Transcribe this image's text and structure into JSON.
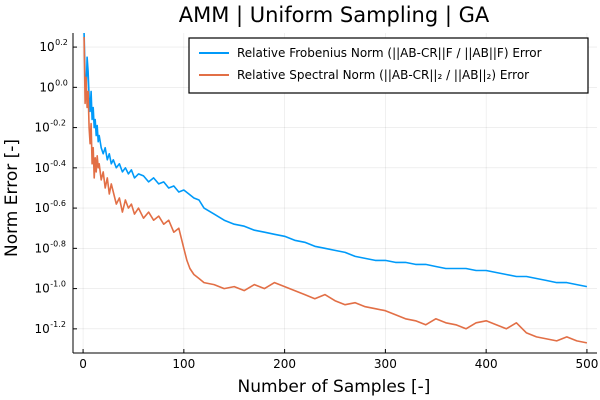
{
  "chart_data": {
    "type": "line",
    "title": "AMM | Uniform Sampling | GA",
    "xlabel": "Number of Samples [-]",
    "ylabel": "Norm Error [-]",
    "xlim": [
      -10,
      510
    ],
    "ylim_log10": [
      -1.32,
      0.27
    ],
    "y_scale": "log",
    "grid": true,
    "legend_position": "top-right",
    "x_ticks": [
      0,
      100,
      200,
      300,
      400,
      500
    ],
    "y_ticks": [
      {
        "base": "10",
        "exp": "0.2",
        "value": 0.2
      },
      {
        "base": "10",
        "exp": "0.0",
        "value": 0.0
      },
      {
        "base": "10",
        "exp": "-0.2",
        "value": -0.2
      },
      {
        "base": "10",
        "exp": "-0.4",
        "value": -0.4
      },
      {
        "base": "10",
        "exp": "-0.6",
        "value": -0.6
      },
      {
        "base": "10",
        "exp": "-0.8",
        "value": -0.8
      },
      {
        "base": "10",
        "exp": "-1.0",
        "value": -1.0
      },
      {
        "base": "10",
        "exp": "-1.2",
        "value": -1.2
      }
    ],
    "series": [
      {
        "name": "Relative Frobenius Norm (||AB-CR||F / ||AB||F) Error",
        "color": "#009af9",
        "x": [
          1,
          2,
          3,
          4,
          5,
          6,
          7,
          8,
          9,
          10,
          11,
          12,
          13,
          14,
          15,
          16,
          18,
          20,
          22,
          24,
          26,
          28,
          30,
          33,
          36,
          39,
          42,
          45,
          48,
          51,
          55,
          60,
          65,
          70,
          75,
          80,
          85,
          90,
          95,
          100,
          105,
          110,
          115,
          120,
          130,
          140,
          150,
          160,
          170,
          180,
          190,
          200,
          210,
          220,
          230,
          240,
          250,
          260,
          270,
          280,
          290,
          300,
          310,
          320,
          330,
          340,
          350,
          360,
          370,
          380,
          390,
          400,
          410,
          420,
          430,
          440,
          450,
          460,
          470,
          480,
          490,
          500
        ],
        "y_log10": [
          0.27,
          0.05,
          -0.05,
          0.15,
          0.08,
          -0.05,
          -0.12,
          -0.02,
          -0.16,
          -0.1,
          -0.2,
          -0.16,
          -0.24,
          -0.19,
          -0.27,
          -0.24,
          -0.3,
          -0.33,
          -0.3,
          -0.36,
          -0.33,
          -0.38,
          -0.36,
          -0.4,
          -0.38,
          -0.42,
          -0.4,
          -0.43,
          -0.41,
          -0.45,
          -0.43,
          -0.44,
          -0.47,
          -0.45,
          -0.48,
          -0.47,
          -0.5,
          -0.49,
          -0.52,
          -0.51,
          -0.53,
          -0.55,
          -0.56,
          -0.6,
          -0.63,
          -0.66,
          -0.68,
          -0.69,
          -0.71,
          -0.72,
          -0.73,
          -0.74,
          -0.76,
          -0.77,
          -0.79,
          -0.8,
          -0.81,
          -0.82,
          -0.84,
          -0.85,
          -0.86,
          -0.86,
          -0.87,
          -0.87,
          -0.88,
          -0.88,
          -0.89,
          -0.9,
          -0.9,
          -0.9,
          -0.91,
          -0.91,
          -0.92,
          -0.93,
          -0.94,
          -0.94,
          -0.95,
          -0.96,
          -0.97,
          -0.97,
          -0.98,
          -0.99
        ]
      },
      {
        "name": "Relative Spectral Norm (||AB-CR||₂ / ||AB||₂) Error",
        "color": "#e26f46",
        "x": [
          1,
          2,
          3,
          4,
          5,
          6,
          7,
          8,
          9,
          10,
          11,
          12,
          13,
          14,
          15,
          16,
          18,
          20,
          22,
          24,
          26,
          28,
          30,
          33,
          36,
          39,
          42,
          45,
          48,
          51,
          55,
          60,
          65,
          70,
          75,
          80,
          85,
          90,
          95,
          100,
          103,
          106,
          110,
          115,
          120,
          130,
          140,
          150,
          160,
          170,
          180,
          190,
          200,
          210,
          220,
          230,
          240,
          250,
          260,
          270,
          280,
          290,
          300,
          310,
          320,
          330,
          340,
          350,
          360,
          370,
          380,
          390,
          400,
          410,
          420,
          430,
          440,
          450,
          460,
          470,
          480,
          490,
          500
        ],
        "y_log10": [
          0.25,
          -0.08,
          0.05,
          -0.1,
          -0.02,
          -0.2,
          -0.28,
          -0.18,
          -0.38,
          -0.3,
          -0.45,
          -0.35,
          -0.42,
          -0.34,
          -0.4,
          -0.38,
          -0.46,
          -0.42,
          -0.5,
          -0.45,
          -0.53,
          -0.48,
          -0.52,
          -0.58,
          -0.55,
          -0.62,
          -0.56,
          -0.6,
          -0.58,
          -0.63,
          -0.6,
          -0.65,
          -0.62,
          -0.66,
          -0.64,
          -0.68,
          -0.66,
          -0.72,
          -0.7,
          -0.8,
          -0.86,
          -0.9,
          -0.93,
          -0.95,
          -0.97,
          -0.98,
          -1.0,
          -0.99,
          -1.01,
          -0.98,
          -1.0,
          -0.97,
          -0.99,
          -1.01,
          -1.03,
          -1.05,
          -1.03,
          -1.06,
          -1.08,
          -1.07,
          -1.09,
          -1.1,
          -1.11,
          -1.13,
          -1.15,
          -1.16,
          -1.18,
          -1.15,
          -1.17,
          -1.18,
          -1.2,
          -1.17,
          -1.16,
          -1.18,
          -1.2,
          -1.17,
          -1.22,
          -1.24,
          -1.25,
          -1.26,
          -1.24,
          -1.26,
          -1.27
        ]
      }
    ]
  }
}
